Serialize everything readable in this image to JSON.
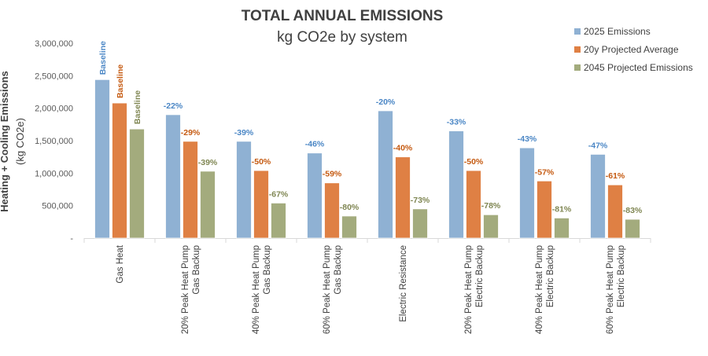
{
  "chart_data": {
    "type": "bar",
    "title": "TOTAL ANNUAL EMISSIONS",
    "subtitle": "kg CO2e by system",
    "ylabel": "Heating + Cooling Emissions",
    "ylabel_unit": "(kg CO2e)",
    "ylim": [
      0,
      3000000
    ],
    "yticks": [
      "-",
      "500,000",
      "1,000,000",
      "1,500,000",
      "2,000,000",
      "2,500,000",
      "3,000,000"
    ],
    "grid": false,
    "legend_position": "top-right",
    "categories": [
      [
        "Gas Heat"
      ],
      [
        "20% Peak Heat Pump",
        "Gas Backup"
      ],
      [
        "40% Peak Heat Pump",
        "Gas Backup"
      ],
      [
        "60% Peak Heat Pump",
        "Gas Backup"
      ],
      [
        "Electric Resistance"
      ],
      [
        "20% Peak Heat Pump",
        "Electric Backup"
      ],
      [
        "40% Peak Heat Pump",
        "Electric Backup"
      ],
      [
        "60% Peak Heat Pump",
        "Electric Backup"
      ]
    ],
    "series": [
      {
        "name": "2025 Emissions",
        "color": "#8FB1D3",
        "values": [
          2440000,
          1900000,
          1490000,
          1310000,
          1960000,
          1650000,
          1390000,
          1290000
        ],
        "labels": [
          "Baseline",
          "-22%",
          "-39%",
          "-46%",
          "-20%",
          "-33%",
          "-43%",
          "-47%"
        ],
        "label_color": "#4A86C5"
      },
      {
        "name": "20y Projected Average",
        "color": "#DF8044",
        "values": [
          2080000,
          1490000,
          1040000,
          850000,
          1250000,
          1040000,
          880000,
          820000
        ],
        "labels": [
          "Baseline",
          "-29%",
          "-50%",
          "-59%",
          "-40%",
          "-50%",
          "-57%",
          "-61%"
        ],
        "label_color": "#C55A11"
      },
      {
        "name": "2045 Projected Emissions",
        "color": "#A3AB7D",
        "values": [
          1680000,
          1030000,
          540000,
          340000,
          450000,
          360000,
          310000,
          290000
        ],
        "labels": [
          "Baseline",
          "-39%",
          "-67%",
          "-80%",
          "-73%",
          "-78%",
          "-81%",
          "-83%"
        ],
        "label_color": "#7F8652"
      }
    ]
  }
}
